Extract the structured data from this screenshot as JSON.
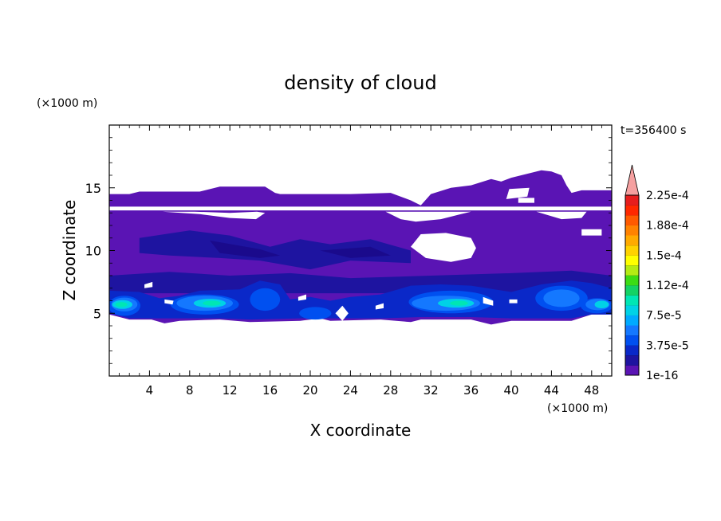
{
  "chart_data": {
    "type": "heatmap",
    "title": "density of cloud",
    "time_label": "t=356400 s",
    "xlabel": "X coordinate",
    "ylabel": "Z coordinate",
    "x_unit": "(×1000 m)",
    "y_unit": "(×1000 m)",
    "xlim": [
      0,
      50
    ],
    "ylim": [
      0,
      20
    ],
    "xticks": [
      4,
      8,
      12,
      16,
      20,
      24,
      28,
      32,
      36,
      40,
      44,
      48
    ],
    "yticks": [
      5,
      10,
      15
    ],
    "grid": false,
    "colorbar": {
      "levels": [
        "1e-16",
        "3.75e-5",
        "7.5e-5",
        "1.12e-4",
        "1.5e-4",
        "1.88e-4",
        "2.25e-4"
      ],
      "colors": [
        "#5a14b4",
        "#1e14a0",
        "#0a28c8",
        "#0050f0",
        "#1478ff",
        "#00aaff",
        "#00d2e6",
        "#00e6b4",
        "#14d264",
        "#3cdc14",
        "#b4eb14",
        "#ffff00",
        "#ffd200",
        "#ffaa00",
        "#ff8200",
        "#ff5a00",
        "#ff2800",
        "#e61e1e"
      ],
      "extend_color": "#f5a0a0"
    },
    "fields": {
      "cloud_layer_z": [
        4.3,
        14.6
      ],
      "dense_layer_z": [
        4.5,
        6.5
      ],
      "upper_patches_max_z": 16.4
    }
  }
}
